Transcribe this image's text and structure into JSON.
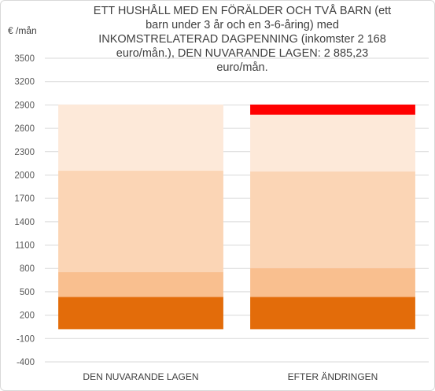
{
  "chart_data": {
    "type": "bar",
    "stacked": true,
    "title_lines": [
      "ETT HUSHÅLL MED EN FÖRÄLDER OCH TVÅ BARN (ett",
      "barn under 3 år och en 3-6-åring) med",
      "INKOMSTRELATERAD DAGPENNING (inkomster  2 168",
      "euro/mån.), DEN NUVARANDE LAGEN: 2 885,23",
      "euro/mån."
    ],
    "ylabel": "€ /mån",
    "ylim": [
      -400,
      3500
    ],
    "yticks": [
      3500,
      3200,
      2900,
      2600,
      2300,
      2000,
      1700,
      1400,
      1100,
      800,
      500,
      200,
      -100,
      -400
    ],
    "grid": true,
    "categories": [
      "DEN NUVARANDE LAGEN",
      "EFTER ÄNDRINGEN"
    ],
    "series": [
      {
        "values": [
          415,
          415
        ],
        "color": "#e36c0a"
      },
      {
        "values": [
          320,
          370
        ],
        "color": "#f9bf8f"
      },
      {
        "values": [
          1300,
          1240
        ],
        "color": "#fbd5b5"
      },
      {
        "values": [
          850,
          730
        ],
        "color": "#fde9d9"
      },
      {
        "values": [
          0,
          130
        ],
        "color": "#ff0000"
      }
    ],
    "base": 20
  }
}
